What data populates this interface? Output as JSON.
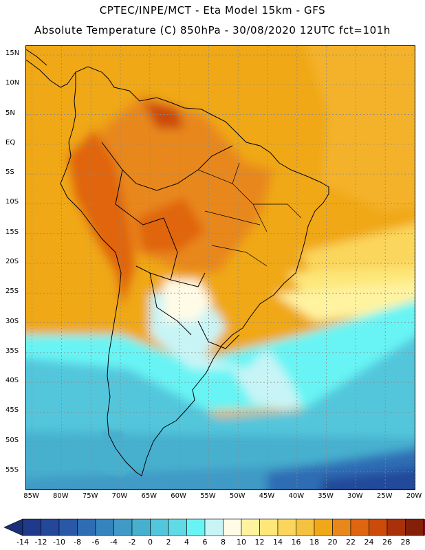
{
  "header": {
    "line1": "CPTEC/INPE/MCT -  Eta Model 15km - GFS",
    "line2": "Absolute Temperature (C) 850hPa - 30/08/2020 12UTC fct=101h"
  },
  "axes": {
    "lat_labels": [
      "15N",
      "10N",
      "5N",
      "EQ",
      "5S",
      "10S",
      "15S",
      "20S",
      "25S",
      "30S",
      "35S",
      "40S",
      "45S",
      "50S",
      "55S"
    ],
    "lat_values": [
      15,
      10,
      5,
      0,
      -5,
      -10,
      -15,
      -20,
      -25,
      -30,
      -35,
      -40,
      -45,
      -50,
      -55
    ],
    "lon_labels": [
      "85W",
      "80W",
      "75W",
      "70W",
      "65W",
      "60W",
      "55W",
      "50W",
      "45W",
      "40W",
      "35W",
      "30W",
      "25W",
      "20W"
    ],
    "lon_values": [
      -85,
      -80,
      -75,
      -70,
      -65,
      -60,
      -55,
      -50,
      -45,
      -40,
      -35,
      -30,
      -25,
      -20
    ],
    "lon_range": [
      -86,
      -20
    ],
    "lat_range": [
      16.5,
      -58
    ]
  },
  "colorbar": {
    "values": [
      -14,
      -12,
      -10,
      -8,
      -6,
      -4,
      -2,
      0,
      2,
      4,
      6,
      8,
      10,
      12,
      14,
      16,
      18,
      20,
      22,
      24,
      26,
      28
    ],
    "labels": [
      "-14",
      "-12",
      "-10",
      "-8",
      "-6",
      "-4",
      "-2",
      "0",
      "2",
      "4",
      "6",
      "8",
      "10",
      "12",
      "14",
      "16",
      "18",
      "20",
      "22",
      "24",
      "26",
      "28"
    ],
    "colors": [
      "#1f3a8a",
      "#23489a",
      "#2a58a8",
      "#2e6db4",
      "#3684bf",
      "#3f9ac6",
      "#47b0cf",
      "#52c6dc",
      "#5fdbe6",
      "#68f4f4",
      "#c8f4f6",
      "#fffbe6",
      "#fff3a0",
      "#fde779",
      "#fbd65c",
      "#f4c23e",
      "#f0a818",
      "#e8881a",
      "#e06510",
      "#cc4a0a",
      "#a8300a",
      "#822009"
    ],
    "under_color": "#1a2f78",
    "over_color": "#7a0a20"
  }
}
